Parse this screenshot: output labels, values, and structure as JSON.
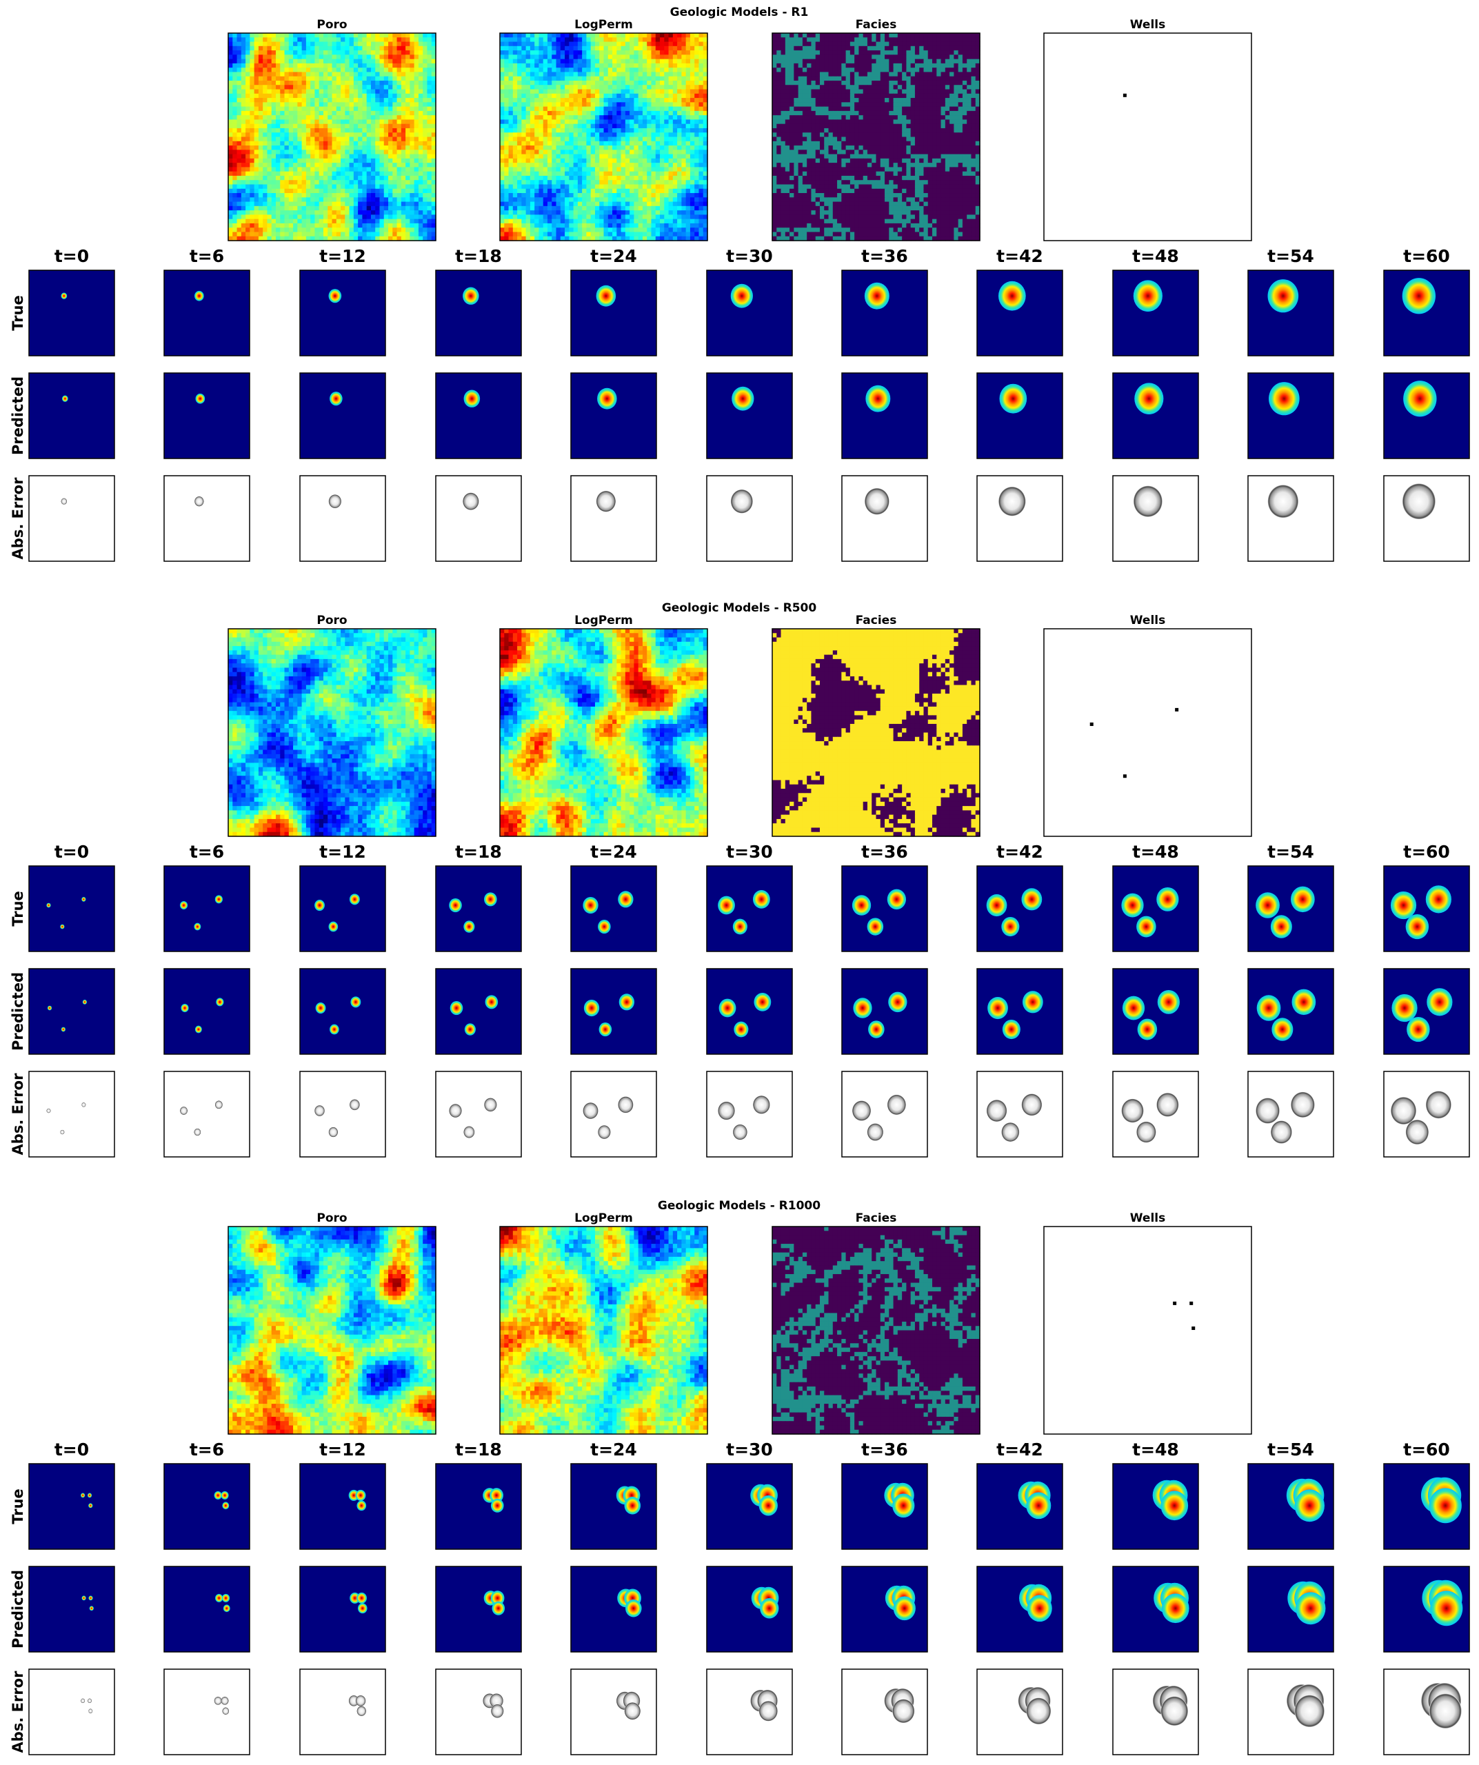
{
  "chart_data": [
    {
      "type": "heatmap",
      "title": "Geologic Models - R1",
      "geologic_panels": [
        "Poro",
        "LogPerm",
        "Facies",
        "Wells"
      ],
      "facies_colors": [
        "#440154",
        "#21918c"
      ],
      "wells": [
        [
          0.39,
          0.3
        ]
      ],
      "times": [
        "t=0",
        "t=6",
        "t=12",
        "t=18",
        "t=24",
        "t=30",
        "t=36",
        "t=42",
        "t=48",
        "t=54",
        "t=60"
      ],
      "row_labels": [
        "True",
        "Predicted",
        "Abs. Error"
      ],
      "plumes": [
        {
          "x": 0.41,
          "y": 0.3,
          "size": [
            0.07,
            0.11,
            0.15,
            0.19,
            0.23,
            0.26,
            0.29,
            0.32,
            0.34,
            0.36,
            0.39
          ]
        }
      ]
    },
    {
      "type": "heatmap",
      "title": "Geologic Models - R500",
      "geologic_panels": [
        "Poro",
        "LogPerm",
        "Facies",
        "Wells"
      ],
      "facies_colors": [
        "#440154",
        "#fde725"
      ],
      "wells": [
        [
          0.23,
          0.46
        ],
        [
          0.64,
          0.39
        ],
        [
          0.39,
          0.71
        ]
      ],
      "times": [
        "t=0",
        "t=6",
        "t=12",
        "t=18",
        "t=24",
        "t=30",
        "t=36",
        "t=42",
        "t=48",
        "t=54",
        "t=60"
      ],
      "row_labels": [
        "True",
        "Predicted",
        "Abs. Error"
      ],
      "plumes": [
        {
          "x": 0.23,
          "y": 0.46,
          "size": [
            0.05,
            0.09,
            0.12,
            0.15,
            0.18,
            0.2,
            0.22,
            0.24,
            0.26,
            0.28,
            0.3
          ]
        },
        {
          "x": 0.64,
          "y": 0.39,
          "size": [
            0.05,
            0.09,
            0.12,
            0.15,
            0.18,
            0.2,
            0.22,
            0.24,
            0.26,
            0.28,
            0.3
          ]
        },
        {
          "x": 0.39,
          "y": 0.71,
          "size": [
            0.05,
            0.08,
            0.11,
            0.13,
            0.15,
            0.17,
            0.19,
            0.21,
            0.23,
            0.25,
            0.27
          ]
        }
      ]
    },
    {
      "type": "heatmap",
      "title": "Geologic Models - R1000",
      "geologic_panels": [
        "Poro",
        "LogPerm",
        "Facies",
        "Wells"
      ],
      "facies_colors": [
        "#440154",
        "#21918c"
      ],
      "wells": [
        [
          0.63,
          0.37
        ],
        [
          0.71,
          0.37
        ],
        [
          0.72,
          0.49
        ]
      ],
      "times": [
        "t=0",
        "t=6",
        "t=12",
        "t=18",
        "t=24",
        "t=30",
        "t=36",
        "t=42",
        "t=48",
        "t=54",
        "t=60"
      ],
      "row_labels": [
        "True",
        "Predicted",
        "Abs. Error"
      ],
      "plumes": [
        {
          "x": 0.63,
          "y": 0.37,
          "size": [
            0.05,
            0.09,
            0.12,
            0.16,
            0.2,
            0.24,
            0.27,
            0.3,
            0.33,
            0.36,
            0.39
          ]
        },
        {
          "x": 0.71,
          "y": 0.37,
          "size": [
            0.05,
            0.09,
            0.12,
            0.16,
            0.2,
            0.24,
            0.27,
            0.3,
            0.33,
            0.36,
            0.39
          ]
        },
        {
          "x": 0.72,
          "y": 0.49,
          "size": [
            0.05,
            0.08,
            0.11,
            0.15,
            0.19,
            0.22,
            0.26,
            0.29,
            0.32,
            0.35,
            0.38
          ]
        }
      ]
    }
  ]
}
